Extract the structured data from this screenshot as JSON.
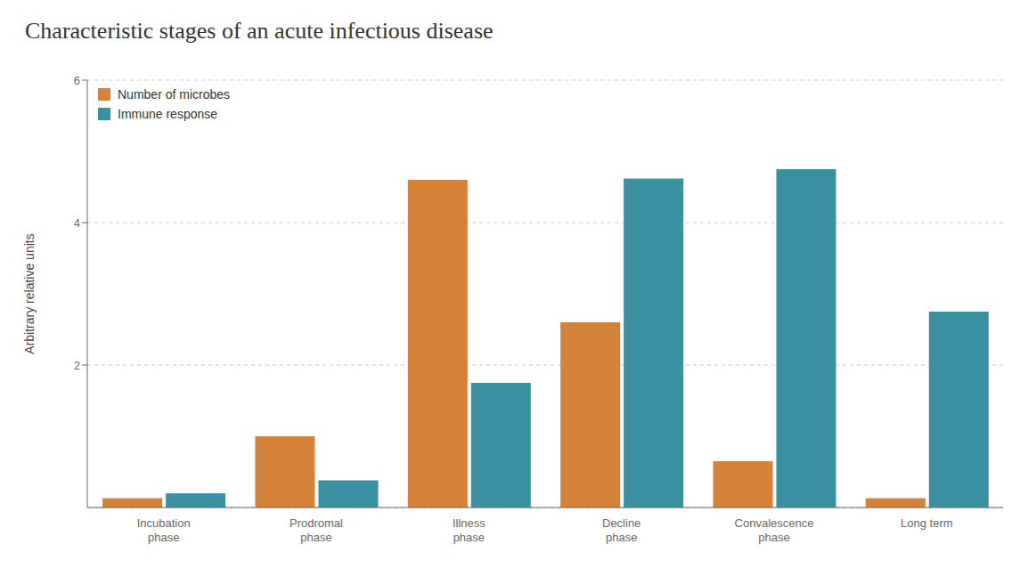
{
  "chart_data": {
    "type": "bar",
    "title": "Characteristic stages of an acute infectious disease",
    "categories": [
      "Incubation\nphase",
      "Prodromal\nphase",
      "Illness\nphase",
      "Decline\nphase",
      "Convalescence\nphase",
      "Long term"
    ],
    "series": [
      {
        "name": "Number of microbes",
        "color": "#D4813A",
        "values": [
          0.13,
          1.0,
          4.6,
          2.6,
          0.65,
          0.13
        ]
      },
      {
        "name": "Immune response",
        "color": "#3A8FA0",
        "values": [
          0.2,
          0.38,
          1.75,
          4.62,
          4.75,
          2.75
        ]
      }
    ],
    "ylabel": "Arbitrary relative units",
    "ylim": [
      0,
      6
    ],
    "yticks": [
      2,
      4,
      6
    ],
    "grid": true,
    "legend": "upper left"
  }
}
